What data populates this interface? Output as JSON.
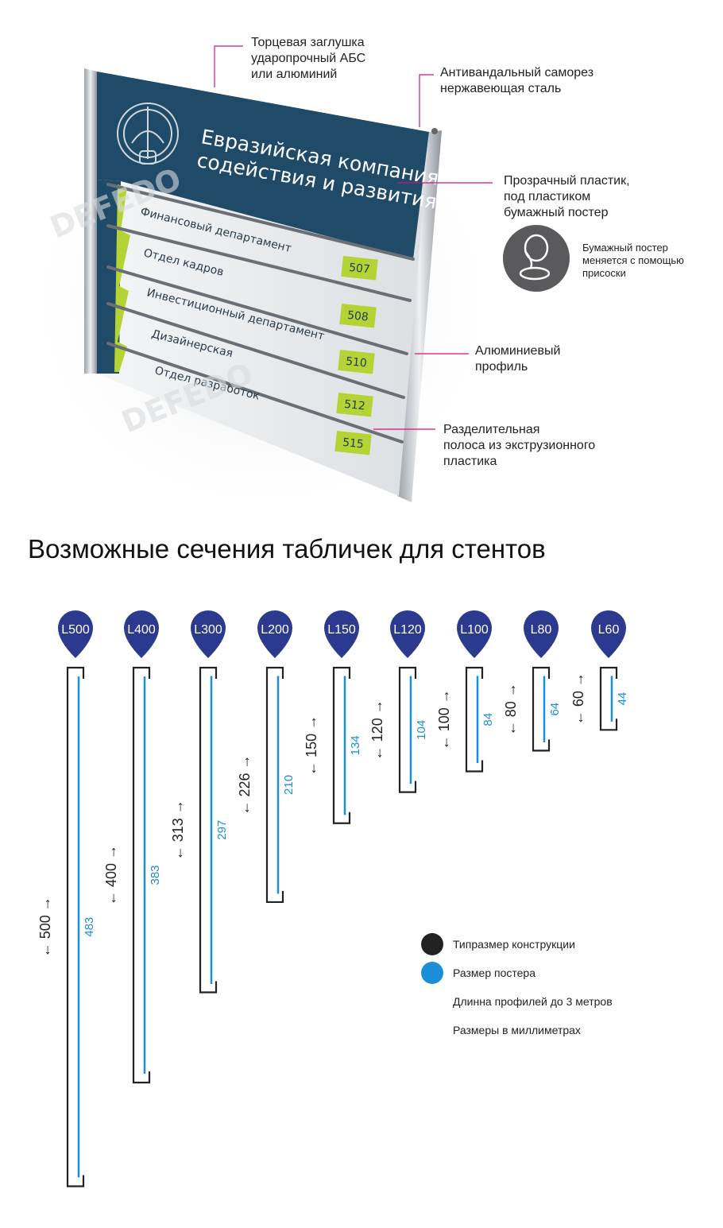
{
  "colors": {
    "frame": "#222222",
    "poster": "#1a8fd6",
    "marker": "#2b3a8f",
    "sign_navy": "#1f4a68",
    "accent_green": "#b5d334",
    "callout_line": "#d4137a"
  },
  "sign": {
    "title_line1": "Евразийская компания",
    "title_line2": "содействия  и развития",
    "rows": [
      {
        "label": "Финансовый департамент",
        "number": ""
      },
      {
        "label": "Отдел кадров",
        "number": "507"
      },
      {
        "label": "Инвестиционный департамент",
        "number": "508"
      },
      {
        "label": "Дизайнерская",
        "number": "510"
      },
      {
        "label": "Отдел разработок",
        "number": "512"
      },
      {
        "label": "",
        "number": "515"
      }
    ],
    "watermark": "DEFEDO"
  },
  "callouts": {
    "end_cap": "Торцевая заглушка\nударопрочный АБС\nили алюминий",
    "screw": "Антивандальный саморез\nнержавеющая сталь",
    "plastic": "Прозрачный пластик,\nпод пластиком\nбумажный постер",
    "suction": "Бумажный постер\nменяется с помощью\nприсоски",
    "profile": "Алюминиевый\nпрофиль",
    "divider": "Разделительная\nполоса из экструзионного\nпластика"
  },
  "section_title": "Возможные сечения табличек для стентов",
  "sections": [
    {
      "label": "L500",
      "size": "500",
      "poster": "483"
    },
    {
      "label": "L400",
      "size": "400",
      "poster": "383"
    },
    {
      "label": "L300",
      "size": "313",
      "poster": "297"
    },
    {
      "label": "L200",
      "size": "226",
      "poster": "210"
    },
    {
      "label": "L150",
      "size": "150",
      "poster": "134"
    },
    {
      "label": "L120",
      "size": "120",
      "poster": "104"
    },
    {
      "label": "L100",
      "size": "100",
      "poster": "84"
    },
    {
      "label": "L80",
      "size": "80",
      "poster": "64"
    },
    {
      "label": "L60",
      "size": "60",
      "poster": "44"
    }
  ],
  "legend": {
    "frame": "Типразмер конструкции",
    "poster": "Размер постера",
    "note1": "Длинна профилей до 3 метров",
    "note2": "Размеры в миллиметрах"
  }
}
